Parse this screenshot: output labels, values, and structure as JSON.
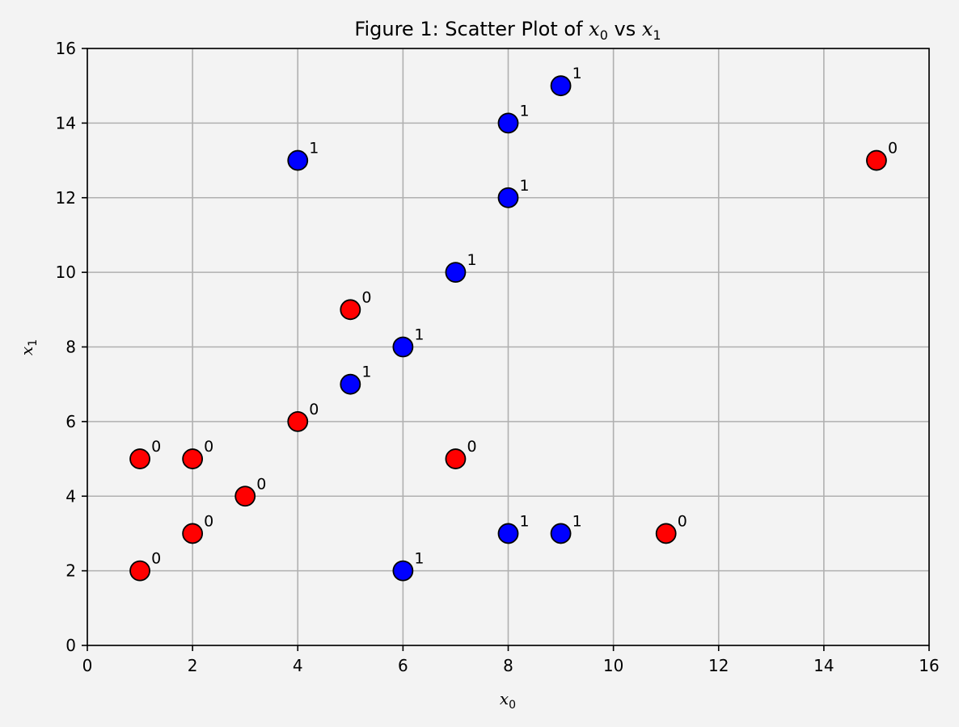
{
  "chart_data": {
    "type": "scatter",
    "title": {
      "prefix": "Figure 1: Scatter Plot of ",
      "var_a": "x",
      "sub_a": "0",
      "middle": " vs ",
      "var_b": "x",
      "sub_b": "1"
    },
    "xlabel": {
      "var": "x",
      "sub": "0"
    },
    "ylabel": {
      "var": "x",
      "sub": "1"
    },
    "xlim": [
      0,
      16
    ],
    "ylim": [
      0,
      16
    ],
    "xticks": [
      "0",
      "2",
      "4",
      "6",
      "8",
      "10",
      "12",
      "14",
      "16"
    ],
    "yticks": [
      "0",
      "2",
      "4",
      "6",
      "8",
      "10",
      "12",
      "14",
      "16"
    ],
    "grid": true,
    "colors": {
      "0": "#ff0000",
      "1": "#0000ff"
    },
    "points": [
      {
        "x": 1,
        "y": 2,
        "label": "0"
      },
      {
        "x": 1,
        "y": 5,
        "label": "0"
      },
      {
        "x": 2,
        "y": 3,
        "label": "0"
      },
      {
        "x": 2,
        "y": 5,
        "label": "0"
      },
      {
        "x": 3,
        "y": 4,
        "label": "0"
      },
      {
        "x": 4,
        "y": 6,
        "label": "0"
      },
      {
        "x": 4,
        "y": 13,
        "label": "1"
      },
      {
        "x": 5,
        "y": 7,
        "label": "1"
      },
      {
        "x": 5,
        "y": 9,
        "label": "0"
      },
      {
        "x": 6,
        "y": 2,
        "label": "1"
      },
      {
        "x": 6,
        "y": 8,
        "label": "1"
      },
      {
        "x": 7,
        "y": 5,
        "label": "0"
      },
      {
        "x": 7,
        "y": 10,
        "label": "1"
      },
      {
        "x": 8,
        "y": 3,
        "label": "1"
      },
      {
        "x": 8,
        "y": 12,
        "label": "1"
      },
      {
        "x": 8,
        "y": 14,
        "label": "1"
      },
      {
        "x": 9,
        "y": 3,
        "label": "1"
      },
      {
        "x": 9,
        "y": 15,
        "label": "1"
      },
      {
        "x": 11,
        "y": 3,
        "label": "0"
      },
      {
        "x": 15,
        "y": 13,
        "label": "0"
      }
    ]
  }
}
